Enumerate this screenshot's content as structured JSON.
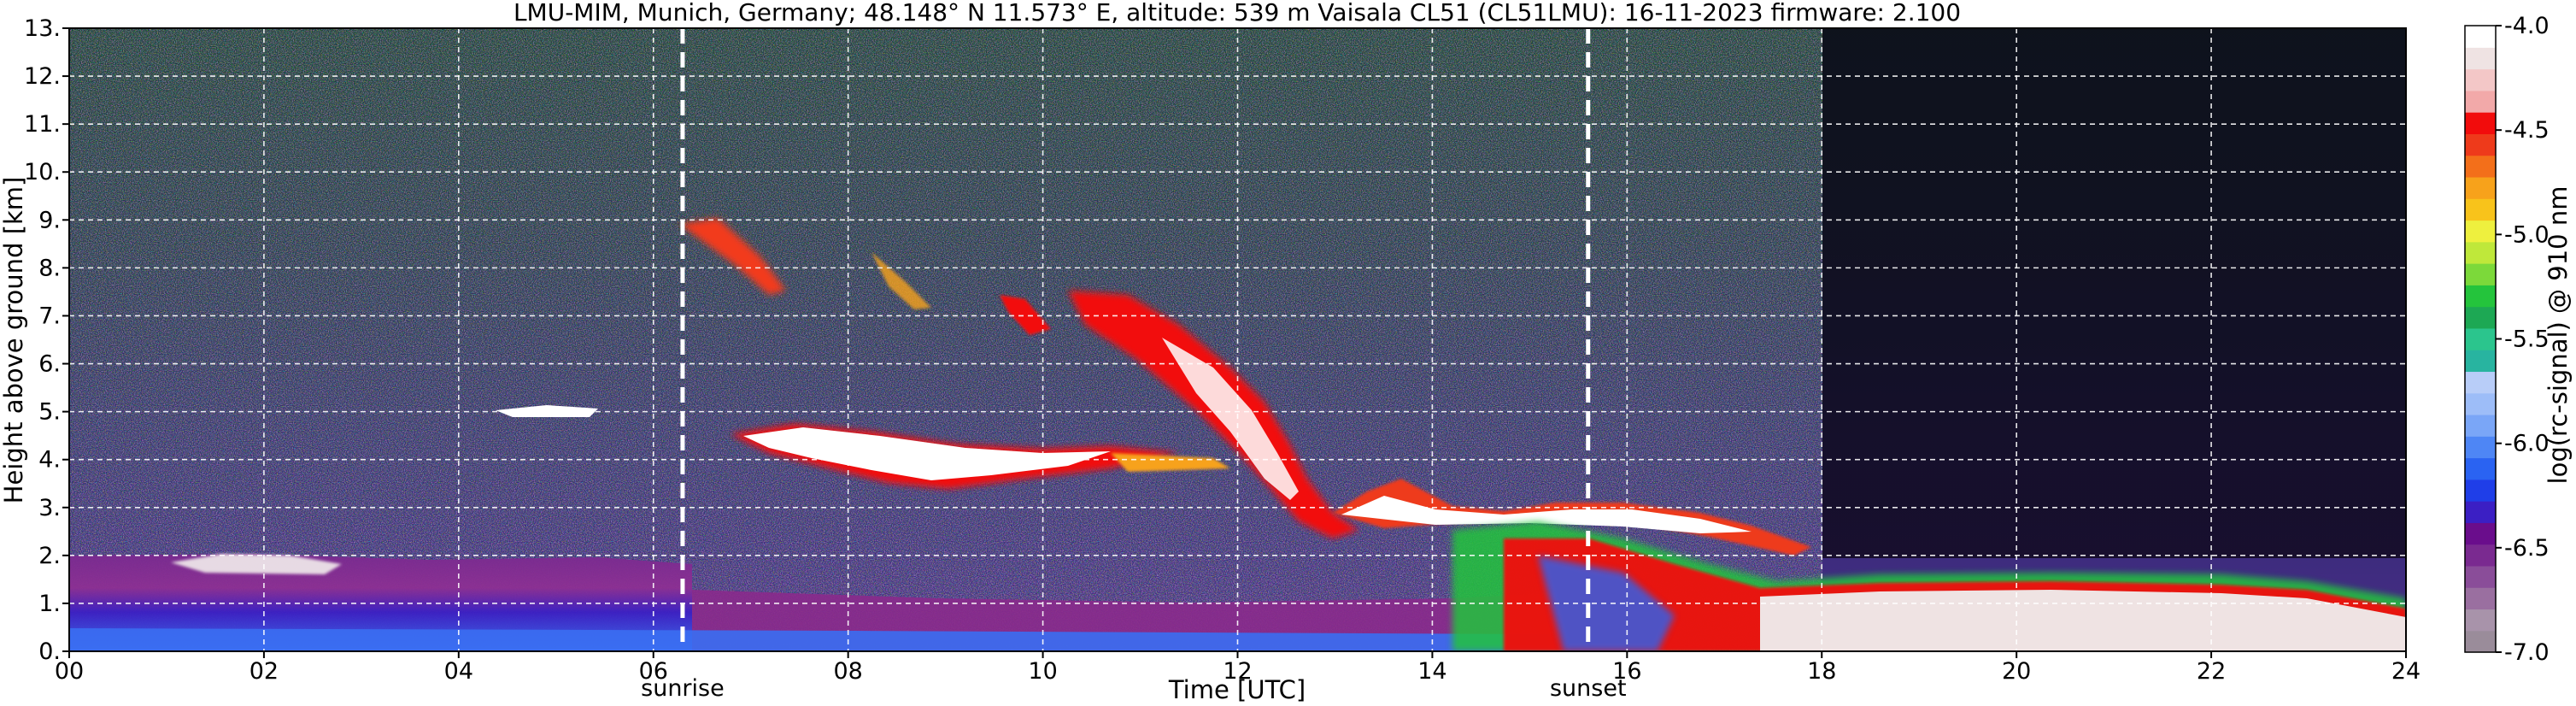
{
  "chart_data": {
    "type": "heatmap",
    "title": "LMU-MIM, Munich, Germany; 48.148° N 11.573° E, altitude: 539 m    Vaisala CL51 (CL51LMU): 16-11-2023    firmware: 2.100",
    "xlabel": "Time [UTC]",
    "ylabel": "Height above ground [km]",
    "xlim": [
      0,
      24
    ],
    "ylim": [
      0,
      13
    ],
    "x_ticks": [
      "00",
      "02",
      "04",
      "06",
      "08",
      "10",
      "12",
      "14",
      "16",
      "18",
      "20",
      "22",
      "24"
    ],
    "y_ticks": [
      "0.",
      "1.",
      "2.",
      "3.",
      "4.",
      "5.",
      "6.",
      "7.",
      "8.",
      "9.",
      "10.",
      "11.",
      "12.",
      "13."
    ],
    "grid": true,
    "markers": [
      {
        "label": "sunrise",
        "x": 6.3
      },
      {
        "label": "sunset",
        "x": 15.6
      }
    ],
    "colorbar": {
      "label": "log(rc-signal) @ 910 nm",
      "range": [
        -7.0,
        -4.0
      ],
      "ticks": [
        "-4.0",
        "-4.5",
        "-5.0",
        "-5.5",
        "-6.0",
        "-6.5",
        "-7.0"
      ],
      "colors": [
        "#9a8c9a",
        "#a893aa",
        "#9a6fa0",
        "#8a4d99",
        "#7a2a90",
        "#6a0d8c",
        "#3b1fc4",
        "#1f3ee8",
        "#2a63f2",
        "#4e86f5",
        "#7aa6f7",
        "#9dbdf8",
        "#b8cdf8",
        "#28b4a0",
        "#2bc58d",
        "#1da854",
        "#24c43c",
        "#7cd93a",
        "#bfe83a",
        "#eef03e",
        "#f8c31b",
        "#f7a21b",
        "#f36f1a",
        "#ee3a1b",
        "#f20c0c",
        "#f2a9a9",
        "#f3c7c7",
        "#efe3e3",
        "#ffffff"
      ]
    },
    "features": [
      {
        "kind": "boundary_layer",
        "x": [
          0,
          6.3
        ],
        "height_km": [
          0,
          1.6
        ]
      },
      {
        "kind": "cloud_layer",
        "x": [
          7.0,
          11.5
        ],
        "height_km": [
          3.8,
          4.6
        ]
      },
      {
        "kind": "cirrus",
        "x": [
          6.3,
          13.0
        ],
        "height_km": [
          5.5,
          8.8
        ]
      },
      {
        "kind": "descending_cloud",
        "x": [
          11.5,
          15.6
        ],
        "height_km": [
          2.4,
          4.0
        ]
      },
      {
        "kind": "low_cloud_precip",
        "x": [
          14.5,
          24
        ],
        "height_km": [
          0,
          1.9
        ]
      }
    ]
  }
}
